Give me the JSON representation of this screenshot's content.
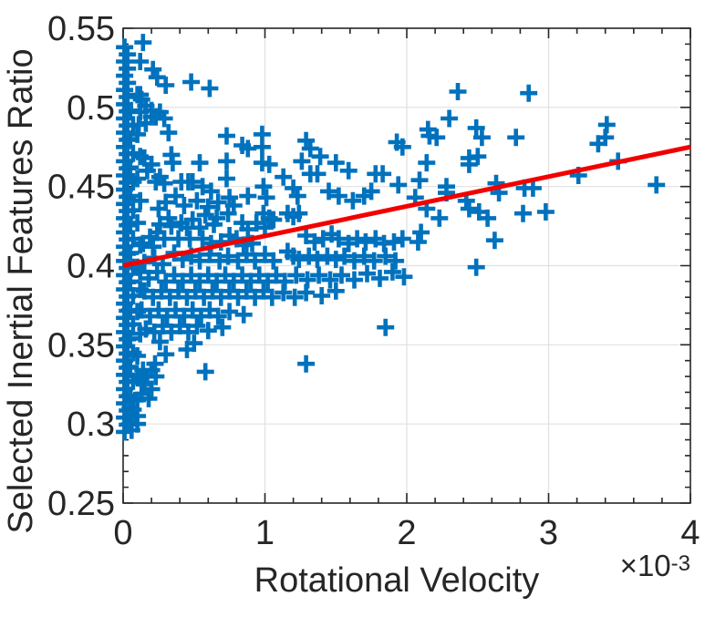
{
  "chart_data": {
    "type": "scatter",
    "title": "",
    "xlabel": "Rotational Velocity",
    "ylabel": "Selected Inertial Features Ratio",
    "x_multiplier": {
      "base": "×10",
      "exp": "-3"
    },
    "x_unit_scale": "1e-3",
    "xlim": [
      0,
      4
    ],
    "ylim": [
      0.25,
      0.55
    ],
    "x_ticks": [
      0,
      1,
      2,
      3,
      4
    ],
    "x_tick_labels": [
      "0",
      "1",
      "2",
      "3",
      "4"
    ],
    "y_ticks": [
      0.25,
      0.3,
      0.35,
      0.4,
      0.45,
      0.5,
      0.55
    ],
    "y_tick_labels": [
      "0.25",
      "0.3",
      "0.35",
      "0.4",
      "0.45",
      "0.5",
      "0.55"
    ],
    "x_minor_step": 0.2,
    "y_minor_step": 0.01,
    "grid": true,
    "legend": "none",
    "colors": {
      "marker": "#0072BD",
      "trend": "#F20000",
      "grid": "#E0E0E0",
      "axis": "#262626"
    },
    "marker_style": "plus",
    "trend_line": {
      "x1": 0,
      "y1": 0.4,
      "x2": 4,
      "y2": 0.475
    },
    "points": [
      [
        0.01,
        0.295
      ],
      [
        0.03,
        0.2995
      ],
      [
        0.01,
        0.304
      ],
      [
        0.03,
        0.3085
      ],
      [
        0.01,
        0.313
      ],
      [
        0.03,
        0.3175
      ],
      [
        0.01,
        0.322
      ],
      [
        0.03,
        0.3265
      ],
      [
        0.01,
        0.331
      ],
      [
        0.03,
        0.3355
      ],
      [
        0.01,
        0.34
      ],
      [
        0.03,
        0.3445
      ],
      [
        0.01,
        0.349
      ],
      [
        0.03,
        0.3535
      ],
      [
        0.01,
        0.358
      ],
      [
        0.03,
        0.3625
      ],
      [
        0.01,
        0.367
      ],
      [
        0.03,
        0.3715
      ],
      [
        0.01,
        0.376
      ],
      [
        0.03,
        0.3805
      ],
      [
        0.01,
        0.385
      ],
      [
        0.03,
        0.3895
      ],
      [
        0.01,
        0.394
      ],
      [
        0.03,
        0.3985
      ],
      [
        0.01,
        0.403
      ],
      [
        0.03,
        0.4075
      ],
      [
        0.01,
        0.412
      ],
      [
        0.03,
        0.4165
      ],
      [
        0.01,
        0.421
      ],
      [
        0.03,
        0.4255
      ],
      [
        0.01,
        0.43
      ],
      [
        0.03,
        0.4345
      ],
      [
        0.01,
        0.439
      ],
      [
        0.03,
        0.4435
      ],
      [
        0.01,
        0.448
      ],
      [
        0.03,
        0.4525
      ],
      [
        0.01,
        0.457
      ],
      [
        0.03,
        0.4615
      ],
      [
        0.01,
        0.466
      ],
      [
        0.03,
        0.4705
      ],
      [
        0.01,
        0.475
      ],
      [
        0.03,
        0.4795
      ],
      [
        0.01,
        0.484
      ],
      [
        0.03,
        0.4885
      ],
      [
        0.01,
        0.493
      ],
      [
        0.03,
        0.4975
      ],
      [
        0.01,
        0.502
      ],
      [
        0.03,
        0.5065
      ],
      [
        0.01,
        0.511
      ],
      [
        0.03,
        0.5155
      ],
      [
        0.01,
        0.52
      ],
      [
        0.03,
        0.5245
      ],
      [
        0.01,
        0.529
      ],
      [
        0.03,
        0.5335
      ],
      [
        0.01,
        0.538
      ],
      [
        0.05,
        0.3
      ],
      [
        0.07,
        0.309
      ],
      [
        0.05,
        0.318
      ],
      [
        0.07,
        0.327
      ],
      [
        0.05,
        0.336
      ],
      [
        0.07,
        0.345
      ],
      [
        0.05,
        0.354
      ],
      [
        0.07,
        0.363
      ],
      [
        0.05,
        0.372
      ],
      [
        0.07,
        0.381
      ],
      [
        0.05,
        0.39
      ],
      [
        0.07,
        0.399
      ],
      [
        0.05,
        0.408
      ],
      [
        0.07,
        0.417
      ],
      [
        0.05,
        0.426
      ],
      [
        0.07,
        0.435
      ],
      [
        0.05,
        0.444
      ],
      [
        0.07,
        0.453
      ],
      [
        0.05,
        0.462
      ],
      [
        0.07,
        0.471
      ],
      [
        0.05,
        0.48
      ],
      [
        0.07,
        0.489
      ],
      [
        0.05,
        0.498
      ],
      [
        0.1,
        0.315
      ],
      [
        0.12,
        0.329
      ],
      [
        0.1,
        0.343
      ],
      [
        0.12,
        0.357
      ],
      [
        0.1,
        0.371
      ],
      [
        0.12,
        0.385
      ],
      [
        0.1,
        0.399
      ],
      [
        0.12,
        0.413
      ],
      [
        0.1,
        0.427
      ],
      [
        0.12,
        0.441
      ],
      [
        0.1,
        0.455
      ],
      [
        0.12,
        0.469
      ],
      [
        0.1,
        0.483
      ],
      [
        0.12,
        0.497
      ],
      [
        0.1,
        0.305
      ],
      [
        0.12,
        0.508
      ],
      [
        0.14,
        0.541
      ],
      [
        0.12,
        0.529
      ],
      [
        0.21,
        0.524
      ],
      [
        0.24,
        0.519
      ],
      [
        0.3,
        0.514
      ],
      [
        0.48,
        0.516
      ],
      [
        0.61,
        0.512
      ],
      [
        2.36,
        0.51
      ],
      [
        2.86,
        0.509
      ],
      [
        0.1,
        0.508
      ],
      [
        0.13,
        0.505
      ],
      [
        0.16,
        0.501
      ],
      [
        0.2,
        0.498
      ],
      [
        0.26,
        0.497
      ],
      [
        0.2,
        0.494
      ],
      [
        0.23,
        0.494
      ],
      [
        0.29,
        0.493
      ],
      [
        0.16,
        0.49
      ],
      [
        0.11,
        0.489
      ],
      [
        0.32,
        0.484
      ],
      [
        0.73,
        0.482
      ],
      [
        0.98,
        0.483
      ],
      [
        0.84,
        0.476
      ],
      [
        0.88,
        0.474
      ],
      [
        0.98,
        0.475
      ],
      [
        1.29,
        0.479
      ],
      [
        1.93,
        0.478
      ],
      [
        1.97,
        0.475
      ],
      [
        2.3,
        0.493
      ],
      [
        2.15,
        0.486
      ],
      [
        2.16,
        0.482
      ],
      [
        2.21,
        0.481
      ],
      [
        2.49,
        0.487
      ],
      [
        2.53,
        0.481
      ],
      [
        2.77,
        0.481
      ],
      [
        3.41,
        0.489
      ],
      [
        3.4,
        0.481
      ],
      [
        3.35,
        0.477
      ],
      [
        0.34,
        0.47
      ],
      [
        0.35,
        0.465
      ],
      [
        0.54,
        0.465
      ],
      [
        0.73,
        0.466
      ],
      [
        0.98,
        0.465
      ],
      [
        1.03,
        0.464
      ],
      [
        1.32,
        0.474
      ],
      [
        1.39,
        0.469
      ],
      [
        1.26,
        0.466
      ],
      [
        1.5,
        0.465
      ],
      [
        1.59,
        0.46
      ],
      [
        1.32,
        0.458
      ],
      [
        1.37,
        0.458
      ],
      [
        1.78,
        0.458
      ],
      [
        1.83,
        0.458
      ],
      [
        1.94,
        0.451
      ],
      [
        2.14,
        0.465
      ],
      [
        2.44,
        0.468
      ],
      [
        2.5,
        0.469
      ],
      [
        2.44,
        0.464
      ],
      [
        3.49,
        0.466
      ],
      [
        2.09,
        0.454
      ],
      [
        2.28,
        0.45
      ],
      [
        2.28,
        0.446
      ],
      [
        2.63,
        0.452
      ],
      [
        2.65,
        0.446
      ],
      [
        2.83,
        0.449
      ],
      [
        2.89,
        0.449
      ],
      [
        3.21,
        0.457
      ],
      [
        3.76,
        0.451
      ],
      [
        0.26,
        0.456
      ],
      [
        0.23,
        0.453
      ],
      [
        0.29,
        0.452
      ],
      [
        0.41,
        0.453
      ],
      [
        0.46,
        0.453
      ],
      [
        0.49,
        0.453
      ],
      [
        0.73,
        0.455
      ],
      [
        1.13,
        0.456
      ],
      [
        0.99,
        0.45
      ],
      [
        0.56,
        0.45
      ],
      [
        0.62,
        0.447
      ],
      [
        0.17,
        0.46
      ],
      [
        0.2,
        0.464
      ],
      [
        0.15,
        0.468
      ],
      [
        0.75,
        0.443
      ],
      [
        0.78,
        0.438
      ],
      [
        0.88,
        0.444
      ],
      [
        1.01,
        0.443
      ],
      [
        1.2,
        0.449
      ],
      [
        1.23,
        0.444
      ],
      [
        1.16,
        0.433
      ],
      [
        1.2,
        0.431
      ],
      [
        1.24,
        0.433
      ],
      [
        0.99,
        0.433
      ],
      [
        1.03,
        0.43
      ],
      [
        1.06,
        0.429
      ],
      [
        0.94,
        0.427
      ],
      [
        0.84,
        0.427
      ],
      [
        2.06,
        0.443
      ],
      [
        2.42,
        0.441
      ],
      [
        2.14,
        0.436
      ],
      [
        2.44,
        0.436
      ],
      [
        2.51,
        0.434
      ],
      [
        2.57,
        0.43
      ],
      [
        2.82,
        0.433
      ],
      [
        2.98,
        0.434
      ],
      [
        2.23,
        0.43
      ],
      [
        0.3,
        0.44
      ],
      [
        0.37,
        0.444
      ],
      [
        0.43,
        0.438
      ],
      [
        0.25,
        0.436
      ],
      [
        0.52,
        0.441
      ],
      [
        0.6,
        0.437
      ],
      [
        0.67,
        0.44
      ],
      [
        1.45,
        0.447
      ],
      [
        1.52,
        0.444
      ],
      [
        1.62,
        0.441
      ],
      [
        1.7,
        0.444
      ],
      [
        1.75,
        0.447
      ],
      [
        1.0,
        0.424
      ],
      [
        0.88,
        0.423
      ],
      [
        0.74,
        0.433
      ],
      [
        0.66,
        0.43
      ],
      [
        0.64,
        0.426
      ],
      [
        0.58,
        0.432
      ],
      [
        0.49,
        0.429
      ],
      [
        0.54,
        0.424
      ],
      [
        0.45,
        0.424
      ],
      [
        0.41,
        0.427
      ],
      [
        0.32,
        0.43
      ],
      [
        0.34,
        0.425
      ],
      [
        0.26,
        0.426
      ],
      [
        0.24,
        0.421
      ],
      [
        0.29,
        0.417
      ],
      [
        0.39,
        0.417
      ],
      [
        0.47,
        0.417
      ],
      [
        0.56,
        0.417
      ],
      [
        0.62,
        0.414
      ],
      [
        0.69,
        0.415
      ],
      [
        0.75,
        0.419
      ],
      [
        0.8,
        0.417
      ],
      [
        0.85,
        0.413
      ],
      [
        0.91,
        0.414
      ],
      [
        1.29,
        0.419
      ],
      [
        1.35,
        0.415
      ],
      [
        1.41,
        0.417
      ],
      [
        1.47,
        0.42
      ],
      [
        1.52,
        0.417
      ],
      [
        1.59,
        0.414
      ],
      [
        1.65,
        0.417
      ],
      [
        1.71,
        0.415
      ],
      [
        1.78,
        0.417
      ],
      [
        1.84,
        0.414
      ],
      [
        1.91,
        0.415
      ],
      [
        1.97,
        0.417
      ],
      [
        2.1,
        0.421
      ],
      [
        2.08,
        0.415
      ],
      [
        2.62,
        0.416
      ],
      [
        0.19,
        0.418
      ],
      [
        0.14,
        0.414
      ],
      [
        0.21,
        0.412
      ],
      [
        1.16,
        0.409
      ],
      [
        1.2,
        0.406
      ],
      [
        1.24,
        0.404
      ],
      [
        1.31,
        0.406
      ],
      [
        1.37,
        0.404
      ],
      [
        1.44,
        0.406
      ],
      [
        1.5,
        0.404
      ],
      [
        1.56,
        0.406
      ],
      [
        0.36,
        0.408
      ],
      [
        0.42,
        0.404
      ],
      [
        0.48,
        0.406
      ],
      [
        0.54,
        0.403
      ],
      [
        0.61,
        0.407
      ],
      [
        0.68,
        0.403
      ],
      [
        0.74,
        0.406
      ],
      [
        0.81,
        0.403
      ],
      [
        0.87,
        0.407
      ],
      [
        0.93,
        0.403
      ],
      [
        1.0,
        0.407
      ],
      [
        1.06,
        0.403
      ],
      [
        2.49,
        0.399
      ],
      [
        0.15,
        0.402
      ],
      [
        0.22,
        0.405
      ],
      [
        0.28,
        0.401
      ],
      [
        1.63,
        0.403
      ],
      [
        1.7,
        0.406
      ],
      [
        1.77,
        0.403
      ],
      [
        1.85,
        0.406
      ],
      [
        1.92,
        0.403
      ],
      [
        0.12,
        0.396
      ],
      [
        0.18,
        0.392
      ],
      [
        0.24,
        0.396
      ],
      [
        0.3,
        0.39
      ],
      [
        0.36,
        0.394
      ],
      [
        0.42,
        0.39
      ],
      [
        0.48,
        0.394
      ],
      [
        0.54,
        0.39
      ],
      [
        0.6,
        0.394
      ],
      [
        0.66,
        0.39
      ],
      [
        0.72,
        0.394
      ],
      [
        0.78,
        0.39
      ],
      [
        0.84,
        0.394
      ],
      [
        0.9,
        0.39
      ],
      [
        0.96,
        0.394
      ],
      [
        1.02,
        0.39
      ],
      [
        1.08,
        0.394
      ],
      [
        1.14,
        0.39
      ],
      [
        1.22,
        0.394
      ],
      [
        1.3,
        0.391
      ],
      [
        1.38,
        0.394
      ],
      [
        1.46,
        0.391
      ],
      [
        1.54,
        0.394
      ],
      [
        1.63,
        0.391
      ],
      [
        1.72,
        0.395
      ],
      [
        1.81,
        0.392
      ],
      [
        1.9,
        0.396
      ],
      [
        1.98,
        0.393
      ],
      [
        0.15,
        0.384
      ],
      [
        0.21,
        0.38
      ],
      [
        0.27,
        0.384
      ],
      [
        0.33,
        0.38
      ],
      [
        0.39,
        0.384
      ],
      [
        0.45,
        0.38
      ],
      [
        0.51,
        0.384
      ],
      [
        0.57,
        0.38
      ],
      [
        0.63,
        0.384
      ],
      [
        0.69,
        0.38
      ],
      [
        0.75,
        0.384
      ],
      [
        0.81,
        0.38
      ],
      [
        0.87,
        0.384
      ],
      [
        0.93,
        0.38
      ],
      [
        0.99,
        0.384
      ],
      [
        1.05,
        0.38
      ],
      [
        1.13,
        0.383
      ],
      [
        1.21,
        0.38
      ],
      [
        1.29,
        0.383
      ],
      [
        1.4,
        0.381
      ],
      [
        1.5,
        0.384
      ],
      [
        0.13,
        0.372
      ],
      [
        0.19,
        0.368
      ],
      [
        0.25,
        0.372
      ],
      [
        0.31,
        0.368
      ],
      [
        0.37,
        0.372
      ],
      [
        0.43,
        0.368
      ],
      [
        0.49,
        0.372
      ],
      [
        0.55,
        0.368
      ],
      [
        0.61,
        0.372
      ],
      [
        0.67,
        0.368
      ],
      [
        0.75,
        0.371
      ],
      [
        0.85,
        0.369
      ],
      [
        0.16,
        0.36
      ],
      [
        0.22,
        0.358
      ],
      [
        0.28,
        0.362
      ],
      [
        0.34,
        0.358
      ],
      [
        0.4,
        0.362
      ],
      [
        0.46,
        0.358
      ],
      [
        0.52,
        0.362
      ],
      [
        0.6,
        0.359
      ],
      [
        1.85,
        0.361
      ],
      [
        0.7,
        0.361
      ],
      [
        0.13,
        0.319
      ],
      [
        0.18,
        0.316
      ],
      [
        0.05,
        0.31
      ],
      [
        0.08,
        0.305
      ],
      [
        0.1,
        0.3
      ],
      [
        0.06,
        0.296
      ],
      [
        0.15,
        0.325
      ],
      [
        0.2,
        0.322
      ],
      [
        0.1,
        0.33
      ],
      [
        0.14,
        0.334
      ],
      [
        0.17,
        0.33
      ],
      [
        0.2,
        0.334
      ],
      [
        0.23,
        0.33
      ],
      [
        0.225,
        0.338
      ],
      [
        0.58,
        0.333
      ],
      [
        1.29,
        0.338
      ],
      [
        0.5,
        0.351
      ],
      [
        0.45,
        0.347
      ],
      [
        0.3,
        0.344
      ],
      [
        0.26,
        0.352
      ]
    ]
  }
}
